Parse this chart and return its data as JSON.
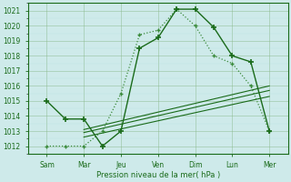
{
  "background_color": "#ceeaea",
  "grid_major_color": "#aaaaaa",
  "grid_minor_color": "#c8e8e8",
  "line_color_dark": "#1a6b1a",
  "line_color_light": "#3a8a3a",
  "xlabel": "Pression niveau de la mer( hPa )",
  "ylim": [
    1011.5,
    1021.5
  ],
  "yticks": [
    1012,
    1013,
    1014,
    1015,
    1016,
    1017,
    1018,
    1019,
    1020,
    1021
  ],
  "xlim": [
    0,
    14
  ],
  "x_tick_positions": [
    1,
    3,
    5,
    7,
    9,
    11,
    13
  ],
  "x_labels": [
    "Sam",
    "Mar",
    "Jeu",
    "Ven",
    "Dim",
    "Lun",
    "Mer"
  ],
  "line1_x": [
    1,
    2,
    3,
    4,
    5,
    6,
    7,
    8,
    9,
    10,
    11,
    12,
    13
  ],
  "line1_y": [
    1015.0,
    1013.8,
    1013.8,
    1012.0,
    1013.0,
    1018.5,
    1019.2,
    1021.1,
    1021.1,
    1019.9,
    1018.0,
    1017.6,
    1013.0
  ],
  "line2_x": [
    1,
    2,
    3,
    4,
    5,
    6,
    7,
    8,
    9,
    10,
    11,
    12,
    13
  ],
  "line2_y": [
    1012.0,
    1012.0,
    1012.0,
    1013.0,
    1015.5,
    1019.4,
    1019.7,
    1021.1,
    1020.0,
    1018.0,
    1017.5,
    1016.0,
    1013.0
  ],
  "trend1_x": [
    3,
    13
  ],
  "trend1_y": [
    1012.6,
    1015.3
  ],
  "trend2_x": [
    3,
    13
  ],
  "trend2_y": [
    1012.9,
    1015.7
  ],
  "trend3_x": [
    3,
    13
  ],
  "trend3_y": [
    1013.1,
    1016.0
  ]
}
